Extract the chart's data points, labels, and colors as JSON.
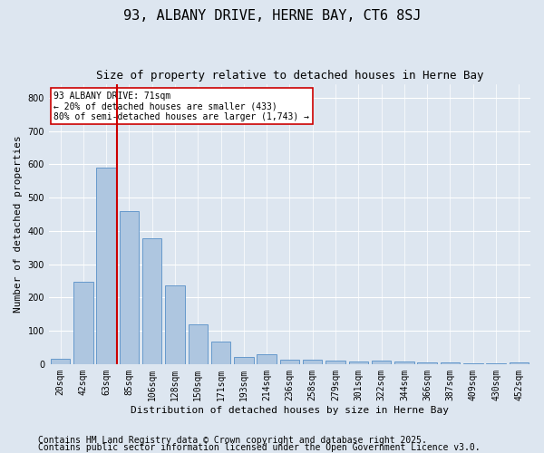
{
  "title": "93, ALBANY DRIVE, HERNE BAY, CT6 8SJ",
  "subtitle": "Size of property relative to detached houses in Herne Bay",
  "xlabel": "Distribution of detached houses by size in Herne Bay",
  "ylabel": "Number of detached properties",
  "categories": [
    "20sqm",
    "42sqm",
    "63sqm",
    "85sqm",
    "106sqm",
    "128sqm",
    "150sqm",
    "171sqm",
    "193sqm",
    "214sqm",
    "236sqm",
    "258sqm",
    "279sqm",
    "301sqm",
    "322sqm",
    "344sqm",
    "366sqm",
    "387sqm",
    "409sqm",
    "430sqm",
    "452sqm"
  ],
  "values": [
    15,
    248,
    590,
    458,
    378,
    236,
    120,
    67,
    22,
    30,
    12,
    12,
    10,
    8,
    10,
    8,
    5,
    5,
    3,
    3,
    5
  ],
  "bar_color": "#aec6e0",
  "bar_edge_color": "#6699cc",
  "vline_color": "#cc0000",
  "annotation_text": "93 ALBANY DRIVE: 71sqm\n← 20% of detached houses are smaller (433)\n80% of semi-detached houses are larger (1,743) →",
  "annotation_box_color": "#ffffff",
  "annotation_box_edge": "#cc0000",
  "ylim": [
    0,
    840
  ],
  "yticks": [
    0,
    100,
    200,
    300,
    400,
    500,
    600,
    700,
    800
  ],
  "background_color": "#dde6f0",
  "plot_bg_color": "#dde6f0",
  "grid_color": "#ffffff",
  "footer_line1": "Contains HM Land Registry data © Crown copyright and database right 2025.",
  "footer_line2": "Contains public sector information licensed under the Open Government Licence v3.0.",
  "title_fontsize": 11,
  "subtitle_fontsize": 9,
  "axis_label_fontsize": 8,
  "tick_fontsize": 7,
  "footer_fontsize": 7,
  "annotation_fontsize": 7,
  "vline_pos": 2.48
}
